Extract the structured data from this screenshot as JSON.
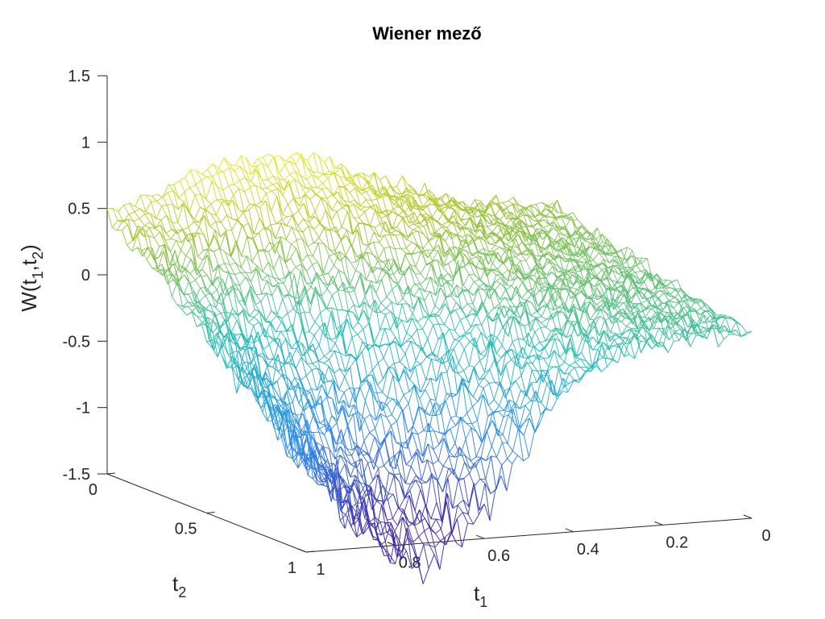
{
  "chart_data": {
    "type": "surface",
    "title": "Wiener mező",
    "xlabel": {
      "base": "t",
      "sub": "1"
    },
    "ylabel": {
      "base": "t",
      "sub": "2"
    },
    "zlabel": {
      "prefix": "W(t",
      "sub1": "1",
      "mid": ",t",
      "sub2": "2",
      "suffix": ")"
    },
    "xlim": [
      0,
      1
    ],
    "ylim": [
      0,
      1
    ],
    "zlim": [
      -1.5,
      1.5
    ],
    "x_ticks": [
      "0",
      "0.2",
      "0.4",
      "0.6",
      "0.8",
      "1"
    ],
    "y_ticks": [
      "0",
      "0.5",
      "1"
    ],
    "z_ticks": [
      "1.5",
      "1",
      "0.5",
      "0",
      "-0.5",
      "-1",
      "-1.5"
    ],
    "colormap": [
      "#3e26a8",
      "#2e88f2",
      "#1fbfb8",
      "#a9c42e",
      "#f9fb0e"
    ],
    "grid": false,
    "style": "mesh",
    "note_values": "Brownian sheet W(t1,t2) sampled on a uniform grid over [0,1]x[0,1]; values roughly range -1.4 to 0.95"
  }
}
